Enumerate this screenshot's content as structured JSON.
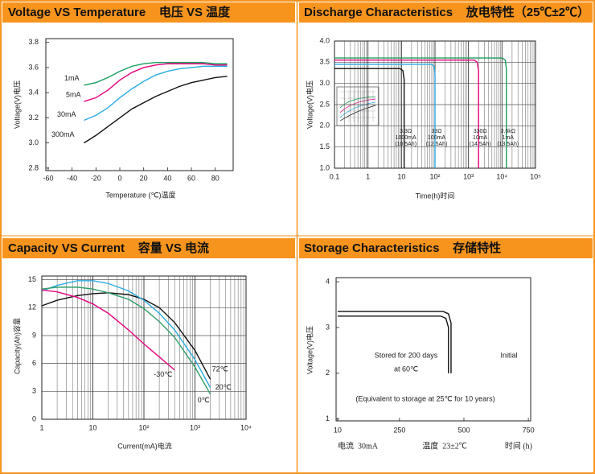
{
  "chart_data": [
    {
      "type": "line",
      "title": "Voltage VS Temperature    电压 VS 温度",
      "x_label": "Temperature (℃)温度",
      "y_label": "Voltage(V)电压",
      "x": [
        -30,
        -20,
        -10,
        0,
        10,
        20,
        30,
        40,
        50,
        60,
        70,
        80,
        90
      ],
      "xlim": [
        -62,
        95
      ],
      "xticks": [
        -60,
        -40,
        -20,
        0,
        20,
        40,
        60,
        80
      ],
      "ylim": [
        2.78,
        3.83
      ],
      "yticks": [
        2.8,
        {
          "value": 3,
          "label": "3.0"
        },
        3.2,
        3.4,
        3.6,
        3.8
      ],
      "grid": false,
      "series_label_at": "start",
      "series": [
        {
          "name": "1mA",
          "color": "#1a9e5c",
          "values": [
            3.46,
            3.48,
            3.52,
            3.57,
            3.61,
            3.63,
            3.64,
            3.64,
            3.64,
            3.64,
            3.64,
            3.63,
            3.63
          ]
        },
        {
          "name": "5mA",
          "color": "#e6007e",
          "values": [
            3.33,
            3.36,
            3.42,
            3.5,
            3.56,
            3.6,
            3.62,
            3.63,
            3.63,
            3.63,
            3.63,
            3.62,
            3.62
          ]
        },
        {
          "name": "30mA",
          "color": "#29abe2",
          "values": [
            3.18,
            3.22,
            3.28,
            3.36,
            3.43,
            3.49,
            3.54,
            3.57,
            3.59,
            3.6,
            3.61,
            3.61,
            3.61
          ]
        },
        {
          "name": "300mA",
          "color": "#111111",
          "values": [
            3.0,
            3.06,
            3.13,
            3.2,
            3.27,
            3.32,
            3.37,
            3.41,
            3.45,
            3.48,
            3.5,
            3.52,
            3.53
          ]
        }
      ]
    },
    {
      "type": "line",
      "title": "Discharge Characteristics    放电特性（25℃±2℃）",
      "x_label": "Time(h)时间",
      "y_label": "Voltage(V)电压",
      "xlog": true,
      "xlim": [
        0.1,
        100000
      ],
      "xticks": [
        0.1,
        1,
        10,
        {
          "value": 100,
          "label": "10²"
        },
        {
          "value": 1000,
          "label": "10³"
        },
        {
          "value": 10000,
          "label": "10⁴"
        },
        {
          "value": 100000,
          "label": "10⁵"
        }
      ],
      "ylim": [
        1,
        4
      ],
      "yticks": [
        {
          "value": 1,
          "label": "1.0"
        },
        1.5,
        {
          "value": 2,
          "label": "2.0"
        },
        2.5,
        {
          "value": 3,
          "label": "3.0"
        },
        3.5,
        {
          "value": 4,
          "label": "4.0"
        }
      ],
      "grid": true,
      "minor_grid": true,
      "series": [
        {
          "label_lines": [
            "3.3Ω",
            "1000mA",
            "(10.5Ah)"
          ],
          "color": "#111111",
          "x": [
            0.1,
            9,
            11,
            12,
            12
          ],
          "values": [
            3.35,
            3.35,
            3.3,
            3.1,
            1.0
          ]
        },
        {
          "label_lines": [
            "33Ω",
            "100mA",
            "(12.5Ah)"
          ],
          "color": "#29abe2",
          "x": [
            0.1,
            80,
            95,
            100,
            100
          ],
          "values": [
            3.45,
            3.45,
            3.4,
            3.2,
            1.0
          ]
        },
        {
          "label_lines": [
            "330Ω",
            "10mA",
            "(14.5Ah)"
          ],
          "color": "#e6007e",
          "x": [
            0.1,
            1500,
            1800,
            2000,
            2000
          ],
          "values": [
            3.55,
            3.55,
            3.5,
            3.3,
            1.0
          ]
        },
        {
          "label_lines": [
            "3.6kΩ",
            "1mA",
            "(13.5Ah)"
          ],
          "color": "#1a9e5c",
          "x": [
            0.1,
            10000,
            12500,
            13500,
            13500
          ],
          "values": [
            3.6,
            3.6,
            3.55,
            3.35,
            1.0
          ]
        }
      ]
    },
    {
      "type": "line",
      "title": "Capacity VS Current    容量 VS 电流",
      "x_label": "Current(mA)电流",
      "y_label": "Capacity(Ah)容量",
      "xlog": true,
      "xlim": [
        1,
        10000
      ],
      "xticks": [
        1,
        10,
        {
          "value": 100,
          "label": "10²"
        },
        {
          "value": 1000,
          "label": "10³"
        },
        {
          "value": 10000,
          "label": "10⁴"
        }
      ],
      "ylim": [
        0,
        15.4
      ],
      "yticks": [
        0,
        3,
        6,
        9,
        12,
        15
      ],
      "grid": true,
      "minor_grid": true,
      "series_label_at": "end",
      "x": [
        1,
        2,
        5,
        10,
        20,
        50,
        100,
        200,
        400,
        1000,
        2000
      ],
      "series": [
        {
          "name": "72℃",
          "color": "#111111",
          "values": [
            12.2,
            12.8,
            13.3,
            13.5,
            13.6,
            13.4,
            12.9,
            12.0,
            10.4,
            7.4,
            4.3
          ]
        },
        {
          "name": "20℃",
          "color": "#29abe2",
          "values": [
            13.8,
            14.4,
            14.9,
            14.9,
            14.6,
            13.8,
            12.8,
            11.4,
            9.6,
            6.4,
            3.4
          ]
        },
        {
          "name": "0℃",
          "color": "#2e9e6a",
          "values": [
            14.0,
            14.2,
            14.2,
            14.0,
            13.6,
            12.9,
            11.9,
            10.5,
            8.8,
            5.6,
            2.7
          ]
        },
        {
          "name": "-30℃",
          "color": "#e6007e",
          "values": [
            13.9,
            13.7,
            13.1,
            12.4,
            11.4,
            9.6,
            8.1,
            6.7,
            5.3,
            null,
            null
          ]
        }
      ]
    },
    {
      "type": "line",
      "title": "Storage Characteristics    存储特性",
      "y_label": "Voltage(V)电压",
      "xlim": [
        4,
        759
      ],
      "xticks": [
        10,
        250,
        500,
        750
      ],
      "ylim": [
        0.96,
        4.09
      ],
      "yticks": [
        1,
        2,
        3,
        4
      ],
      "grid": false,
      "annotations": [
        "Stored for 200 days",
        "at 60℃",
        "Initial",
        "(Equivalent to storage at 25℃ for 10 years)",
        "电流  30mA",
        "温度  23±2℃",
        "时间 (h)"
      ],
      "series": [
        {
          "color": "#111111",
          "x": [
            10,
            420,
            440,
            450,
            450
          ],
          "values": [
            3.35,
            3.35,
            3.3,
            3.1,
            2.0
          ]
        },
        {
          "color": "#111111",
          "x": [
            10,
            410,
            430,
            440,
            440
          ],
          "values": [
            3.25,
            3.25,
            3.2,
            3.0,
            2.0
          ]
        }
      ]
    }
  ]
}
